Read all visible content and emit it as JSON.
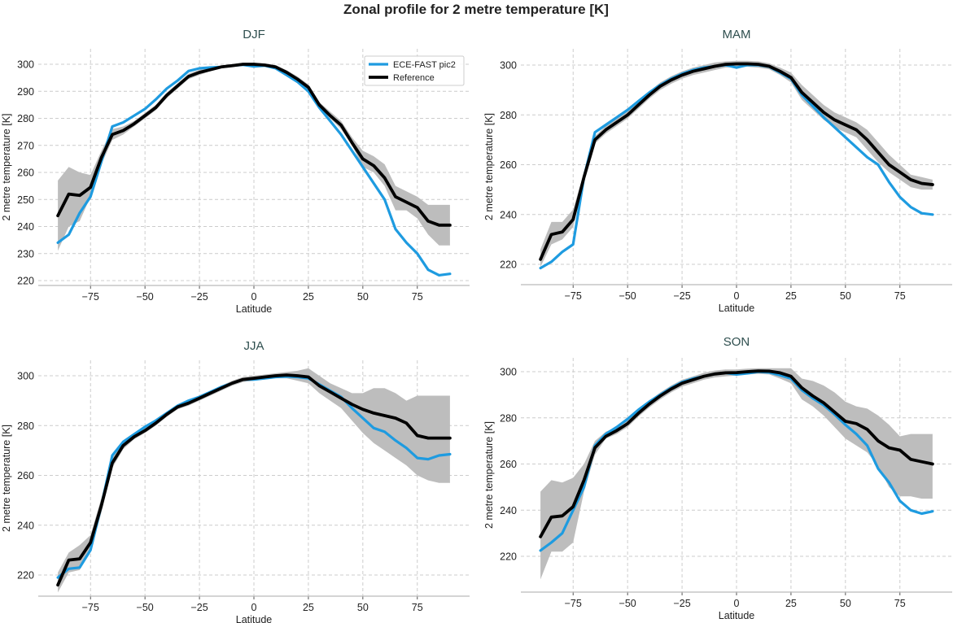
{
  "title": "Zonal profile for 2 metre temperature [K]",
  "colors": {
    "model": "#1e9be0",
    "reference": "#000000",
    "band": "#bdbdbd",
    "grid": "#cccccc"
  },
  "legend": {
    "placement": "top-right",
    "entries": [
      "ECE-FAST pic2",
      "Reference"
    ]
  },
  "chart_data": [
    {
      "type": "line",
      "title": "DJF",
      "xlabel": "Latitude",
      "ylabel": "2 metre temperature [K]",
      "xlim": [
        -99,
        99
      ],
      "ylim": [
        218,
        305
      ],
      "grid": true,
      "xticks": [
        "−75",
        "−50",
        "−25",
        "0",
        "25",
        "50",
        "75"
      ],
      "xtick_values": [
        -75,
        -50,
        -25,
        0,
        25,
        50,
        75
      ],
      "yticks": [
        "220",
        "230",
        "240",
        "250",
        "260",
        "270",
        "280",
        "290",
        "300"
      ],
      "ytick_values": [
        220,
        230,
        240,
        250,
        260,
        270,
        280,
        290,
        300
      ],
      "x": [
        -90,
        -85,
        -80,
        -75,
        -70,
        -65,
        -60,
        -55,
        -50,
        -45,
        -40,
        -35,
        -30,
        -25,
        -20,
        -15,
        -10,
        -5,
        0,
        5,
        10,
        15,
        20,
        25,
        30,
        35,
        40,
        45,
        50,
        55,
        60,
        65,
        70,
        75,
        80,
        85,
        90
      ],
      "series": [
        {
          "name": "ECE-FAST pic2",
          "values": [
            234,
            237,
            245,
            251,
            264,
            277,
            278.5,
            281,
            283.5,
            287,
            291,
            294,
            297.5,
            298.5,
            298.8,
            299,
            299.5,
            299.8,
            299.2,
            299.5,
            298.5,
            296,
            293.5,
            290,
            284,
            279,
            274,
            268,
            262,
            256,
            250,
            239,
            234,
            230,
            224,
            222,
            222.5
          ]
        },
        {
          "name": "Reference",
          "values": [
            244,
            252,
            251.5,
            254.5,
            265.5,
            274,
            275.5,
            278,
            281,
            284,
            288.5,
            292,
            295.5,
            297,
            298,
            299,
            299.5,
            300,
            300,
            299.7,
            299,
            297,
            294.5,
            291.5,
            285,
            281,
            277.5,
            271,
            265,
            262.5,
            258,
            251,
            249,
            247,
            242,
            240.5,
            240.5
          ]
        }
      ],
      "reference_band": {
        "lower": [
          231,
          240,
          242,
          251,
          263,
          272,
          274,
          277,
          280,
          283,
          287.5,
          291,
          294.5,
          296,
          297.5,
          298.5,
          299,
          299.5,
          299.5,
          299.2,
          298.5,
          296.2,
          293.5,
          290.5,
          284,
          280,
          276,
          270,
          262,
          260,
          255,
          246,
          246,
          243,
          237,
          233,
          233
        ],
        "upper": [
          257,
          262,
          260,
          259,
          268,
          276,
          277,
          279,
          282,
          285,
          289.5,
          293,
          296.5,
          298,
          298.5,
          299.5,
          300,
          300.5,
          300.5,
          300.2,
          299.5,
          297.8,
          295.5,
          292.5,
          286,
          282.5,
          279,
          273,
          268,
          266,
          263,
          255,
          253,
          251,
          248,
          248,
          248
        ]
      }
    },
    {
      "type": "line",
      "title": "MAM",
      "xlabel": "Latitude",
      "ylabel": "2 metre temperature [K]",
      "xlim": [
        -99,
        99
      ],
      "ylim": [
        212,
        306
      ],
      "grid": true,
      "xticks": [
        "−75",
        "−50",
        "−25",
        "0",
        "25",
        "50",
        "75"
      ],
      "xtick_values": [
        -75,
        -50,
        -25,
        0,
        25,
        50,
        75
      ],
      "yticks": [
        "220",
        "240",
        "260",
        "280",
        "300"
      ],
      "ytick_values": [
        220,
        240,
        260,
        280,
        300
      ],
      "x": [
        -90,
        -85,
        -80,
        -75,
        -70,
        -65,
        -60,
        -55,
        -50,
        -45,
        -40,
        -35,
        -30,
        -25,
        -20,
        -15,
        -10,
        -5,
        0,
        5,
        10,
        15,
        20,
        25,
        30,
        35,
        40,
        45,
        50,
        55,
        60,
        65,
        70,
        75,
        80,
        85,
        90
      ],
      "series": [
        {
          "name": "ECE-FAST pic2",
          "values": [
            218.5,
            221,
            225,
            228,
            255,
            273,
            276,
            279,
            282,
            285.5,
            289,
            292,
            294.5,
            296.5,
            298,
            299,
            299.5,
            300,
            299,
            300,
            300,
            299.3,
            297,
            294.5,
            288,
            283.5,
            279,
            275,
            271,
            267,
            263,
            260,
            253,
            247,
            243,
            240.5,
            240
          ]
        },
        {
          "name": "Reference",
          "values": [
            222,
            232,
            233,
            238,
            255,
            270,
            274,
            277,
            280,
            284,
            288,
            291.5,
            294,
            296,
            297.5,
            298.5,
            299.5,
            300.3,
            300.5,
            300.5,
            300.3,
            299.5,
            297.5,
            295,
            289,
            285,
            281,
            278,
            276,
            274,
            270,
            265,
            260,
            257,
            254,
            252.5,
            252
          ]
        }
      ],
      "reference_band": {
        "lower": [
          219,
          228,
          230,
          235,
          253,
          268.5,
          272.5,
          275.5,
          278.5,
          282.5,
          286.5,
          290,
          292.5,
          294.5,
          296,
          297,
          298,
          299,
          299.3,
          299.3,
          299,
          298.3,
          296,
          293,
          286,
          282,
          278,
          275,
          273,
          271,
          266,
          261,
          257,
          254,
          251,
          250,
          250
        ],
        "upper": [
          226,
          237,
          237,
          242,
          257,
          271.5,
          275.5,
          278.5,
          281.5,
          285.5,
          289.5,
          293,
          295.5,
          297.5,
          299,
          300,
          301,
          301.5,
          301.7,
          301.7,
          301.5,
          300.7,
          299,
          297,
          292,
          288,
          284,
          281,
          279,
          277,
          274,
          269,
          264,
          260,
          256,
          255,
          254
        ]
      }
    },
    {
      "type": "line",
      "title": "JJA",
      "xlabel": "Latitude",
      "ylabel": "2 metre temperature [K]",
      "xlim": [
        -99,
        99
      ],
      "ylim": [
        211,
        306
      ],
      "grid": true,
      "xticks": [
        "−75",
        "−50",
        "−25",
        "0",
        "25",
        "50",
        "75"
      ],
      "xtick_values": [
        -75,
        -50,
        -25,
        0,
        25,
        50,
        75
      ],
      "yticks": [
        "220",
        "240",
        "260",
        "280",
        "300"
      ],
      "ytick_values": [
        220,
        240,
        260,
        280,
        300
      ],
      "x": [
        -90,
        -85,
        -80,
        -75,
        -70,
        -65,
        -60,
        -55,
        -50,
        -45,
        -40,
        -35,
        -30,
        -25,
        -20,
        -15,
        -10,
        -5,
        0,
        5,
        10,
        15,
        20,
        25,
        30,
        35,
        40,
        45,
        50,
        55,
        60,
        65,
        70,
        75,
        80,
        85,
        90
      ],
      "series": [
        {
          "name": "ECE-FAST pic2",
          "values": [
            219,
            222.5,
            223,
            230,
            248,
            268,
            273.5,
            276.5,
            279.5,
            282,
            285,
            288,
            290,
            291.5,
            293.5,
            295.5,
            297,
            298.5,
            298.5,
            299,
            299.5,
            299.7,
            299.5,
            299,
            296.5,
            294,
            291.5,
            287,
            283,
            279,
            277.5,
            274,
            271,
            267,
            266.5,
            268,
            268.5
          ]
        },
        {
          "name": "Reference",
          "values": [
            216,
            226,
            226.5,
            233,
            248,
            265,
            272,
            275.5,
            278,
            281,
            284.5,
            287.5,
            289,
            291,
            293,
            295,
            297,
            298.5,
            299,
            299.5,
            300,
            300.3,
            300,
            299.5,
            296,
            293.5,
            291,
            288.5,
            286.5,
            285,
            284,
            283,
            281,
            276,
            275,
            275,
            275
          ]
        }
      ],
      "reference_band": {
        "lower": [
          213,
          221,
          222,
          230,
          245,
          263,
          270.5,
          274.5,
          277,
          280,
          283.5,
          286.5,
          288,
          290,
          292,
          294,
          296,
          297.5,
          298,
          298.5,
          299,
          299,
          298,
          297,
          293,
          290,
          287,
          282,
          277,
          273,
          270,
          267,
          264,
          260,
          258,
          257,
          257
        ],
        "upper": [
          221,
          229,
          232,
          236,
          251,
          267,
          273.5,
          276.5,
          279,
          282,
          285.5,
          288.5,
          290,
          292,
          294,
          296,
          298,
          299.5,
          300,
          300.5,
          301,
          301.5,
          302,
          303,
          300,
          297,
          295,
          293,
          293,
          295,
          295,
          293,
          290,
          292,
          292,
          292,
          292
        ]
      }
    },
    {
      "type": "line",
      "title": "SON",
      "xlabel": "Latitude",
      "ylabel": "2 metre temperature [K]",
      "xlim": [
        -99,
        99
      ],
      "ylim": [
        204,
        306
      ],
      "grid": true,
      "xticks": [
        "−75",
        "−50",
        "−25",
        "0",
        "25",
        "50",
        "75"
      ],
      "xtick_values": [
        -75,
        -50,
        -25,
        0,
        25,
        50,
        75
      ],
      "yticks": [
        "220",
        "240",
        "260",
        "280",
        "300"
      ],
      "ytick_values": [
        220,
        240,
        260,
        280,
        300
      ],
      "x": [
        -90,
        -85,
        -80,
        -75,
        -70,
        -65,
        -60,
        -55,
        -50,
        -45,
        -40,
        -35,
        -30,
        -25,
        -20,
        -15,
        -10,
        -5,
        0,
        5,
        10,
        15,
        20,
        25,
        30,
        35,
        40,
        45,
        50,
        55,
        60,
        65,
        70,
        75,
        80,
        85,
        90
      ],
      "series": [
        {
          "name": "ECE-FAST pic2",
          "values": [
            222.5,
            226,
            230,
            240,
            250,
            268,
            273,
            276,
            279.5,
            283.5,
            287,
            290,
            293,
            295.5,
            297,
            298,
            299,
            299.5,
            298.8,
            299.3,
            300,
            299.7,
            298.5,
            297,
            292,
            288.5,
            285.5,
            281.5,
            277,
            273,
            268,
            258,
            252,
            244,
            240,
            238.5,
            239.5
          ]
        },
        {
          "name": "Reference",
          "values": [
            228.5,
            237,
            237.5,
            241.5,
            253,
            267,
            272,
            274.5,
            277.5,
            282,
            286,
            289.5,
            292.5,
            295,
            296.5,
            298,
            299,
            299.5,
            299.6,
            300,
            300.3,
            300.2,
            299.5,
            298,
            293,
            289.5,
            286.5,
            282.5,
            278.5,
            277.5,
            275,
            270,
            267,
            266,
            262,
            261,
            260
          ]
        }
      ],
      "reference_band": {
        "lower": [
          210,
          222,
          222,
          226,
          248,
          264,
          271,
          273,
          276,
          280.5,
          284.5,
          288,
          291,
          293.5,
          295,
          296.5,
          297.5,
          298,
          298.3,
          298.8,
          299,
          298.8,
          297,
          295,
          288,
          285,
          281,
          276,
          271,
          268,
          265,
          259,
          250,
          246,
          246,
          245,
          245
        ],
        "upper": [
          248,
          253,
          252,
          254,
          260,
          270,
          274,
          276,
          279,
          283.5,
          287.5,
          291,
          294,
          296.5,
          298,
          299.5,
          300.5,
          301,
          301,
          301.3,
          301.5,
          301.5,
          301.5,
          301.5,
          297,
          296,
          294,
          291,
          287,
          285,
          284,
          281,
          277,
          272,
          273,
          273,
          273
        ]
      }
    }
  ]
}
